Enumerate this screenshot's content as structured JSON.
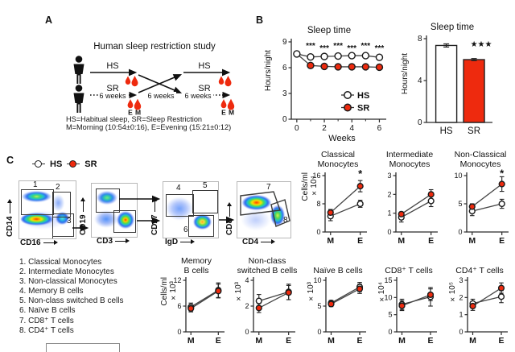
{
  "figure": {
    "panel_a_label": "A",
    "panel_b_label": "B",
    "panel_c_label": "C"
  },
  "colors": {
    "sr_red": "#ee2a0e",
    "hs_white": "#ffffff",
    "axis": "#2b2b2b"
  },
  "icons": {
    "arrow_right": "→",
    "blood_drop": "drop",
    "person": "person-pictogram"
  },
  "panelA": {
    "title": "Human sleep restriction study",
    "hs": "HS",
    "sr": "SR",
    "six_weeks": "6 weeks",
    "e": "E",
    "m": "M",
    "footnote1": "HS=Habitual sleep, SR=Sleep Restriction",
    "footnote2": "M=Morning (10:54±0:16), E=Evening (15:21±0:12)"
  },
  "panelC": {
    "legend": {
      "hs": "HS",
      "sr": "SR"
    },
    "flow": {
      "plots": [
        {
          "x": "CD16",
          "y": "CD14",
          "g1": "1",
          "g2": "2",
          "g3": "3"
        },
        {
          "x": "CD3",
          "y": "CD19"
        },
        {
          "x": "IgD",
          "y": "CD27",
          "g4": "4",
          "g5": "5",
          "g6": "6"
        },
        {
          "x": "CD4",
          "y": "CD8",
          "g7": "7",
          "g8": "8"
        }
      ]
    },
    "cell_types": [
      "1. Classical Monocytes",
      "2. Intermediate Monocytes",
      "3. Non-classical Monocytes",
      "4. Memory B cells",
      "5. Non-class switched B cells",
      "6. Naïve B cells",
      "7. CD8⁺ T cells",
      "8. CD4⁺ T cells"
    ]
  },
  "chart_data": [
    {
      "id": "sleep-time-line",
      "type": "line",
      "title": "Sleep time",
      "ylabel": "Hours/night",
      "xlabel": "Weeks",
      "x": [
        0,
        1,
        2,
        3,
        4,
        5,
        6
      ],
      "xlim": [
        -0.4,
        6.5
      ],
      "xticks": [
        0,
        2,
        4,
        6
      ],
      "xminor": [
        1,
        3,
        5
      ],
      "ylim": [
        0,
        9
      ],
      "yticks": [
        0,
        3,
        6,
        9
      ],
      "series": [
        {
          "name": "HS",
          "fill": "#ffffff",
          "values": [
            7.6,
            7.25,
            7.3,
            7.35,
            7.4,
            7.4,
            7.2
          ]
        },
        {
          "name": "SR",
          "fill": "#ee2a0e",
          "values": [
            7.6,
            6.25,
            6.15,
            6.1,
            6.1,
            6.1,
            6.05
          ],
          "skip_markers": [
            0
          ]
        }
      ],
      "sig": {
        "text": "***",
        "xs": [
          1,
          2,
          3,
          4,
          5,
          6
        ],
        "y": 8.25
      },
      "legend": true,
      "legend_position": "inside-bottom-right"
    },
    {
      "id": "sleep-time-bar",
      "type": "bar",
      "title": "Sleep time",
      "ylabel": "Hours/night",
      "categories": [
        "HS",
        "SR"
      ],
      "values": [
        7.35,
        6.0
      ],
      "errors": [
        0.15,
        0.1
      ],
      "colors": [
        "#ffffff",
        "#ee2a0e"
      ],
      "ylim": [
        0,
        8
      ],
      "yticks": [
        0,
        4,
        8
      ],
      "sig": {
        "text": "★★★",
        "xi": 1,
        "dx": 9,
        "y": 7.25,
        "fs": 10
      }
    },
    {
      "id": "classical-monocytes",
      "type": "line",
      "title": [
        "Classical",
        "Monocytes"
      ],
      "ylabel": [
        "Cells/ml",
        "×10⁴"
      ],
      "categories": [
        "M",
        "E"
      ],
      "ylim": [
        0,
        16
      ],
      "yticks": [
        0,
        8,
        16
      ],
      "series": [
        {
          "name": "HS",
          "fill": "#ffffff",
          "values": [
            4.5,
            8.0
          ],
          "errors": [
            1.3,
            1.0
          ]
        },
        {
          "name": "SR",
          "fill": "#ee2a0e",
          "values": [
            5.5,
            13.0
          ],
          "errors": [
            0.9,
            1.6
          ]
        }
      ],
      "sig": {
        "text": "*",
        "xi": 1,
        "dx": 0,
        "y": 15.6,
        "fs": 13
      }
    },
    {
      "id": "intermediate-monocytes",
      "type": "line",
      "title": [
        "Intermediate",
        "Monocytes"
      ],
      "categories": [
        "M",
        "E"
      ],
      "ylim": [
        0,
        3
      ],
      "yticks": [
        0,
        1,
        2,
        3
      ],
      "series": [
        {
          "name": "HS",
          "fill": "#ffffff",
          "values": [
            0.78,
            1.65
          ],
          "errors": [
            0.25,
            0.3
          ]
        },
        {
          "name": "SR",
          "fill": "#ee2a0e",
          "values": [
            0.95,
            2.0
          ],
          "errors": [
            0.12,
            0.25
          ]
        }
      ]
    },
    {
      "id": "non-classical-monocytes",
      "type": "line",
      "title": [
        "Non-Classical",
        "Monocytes"
      ],
      "categories": [
        "M",
        "E"
      ],
      "ylim": [
        0,
        10
      ],
      "yticks": [
        0,
        5,
        10
      ],
      "series": [
        {
          "name": "HS",
          "fill": "#ffffff",
          "values": [
            3.7,
            5.0
          ],
          "errors": [
            0.8,
            0.8
          ]
        },
        {
          "name": "SR",
          "fill": "#ee2a0e",
          "values": [
            4.5,
            8.5
          ],
          "errors": [
            0.5,
            1.3
          ]
        }
      ],
      "sig": {
        "text": "*",
        "xi": 1,
        "dx": 0,
        "y": 9.8,
        "fs": 13
      }
    },
    {
      "id": "memory-b-cells",
      "type": "line",
      "title": [
        "Memory",
        "B cells"
      ],
      "ylabel": [
        "Cells/ml",
        "×10³"
      ],
      "categories": [
        "M",
        "E"
      ],
      "ylim": [
        0,
        12
      ],
      "yticks": [
        0,
        6,
        12
      ],
      "series": [
        {
          "name": "HS",
          "fill": "#ffffff",
          "values": [
            5.8,
            9.7
          ],
          "errors": [
            0.9,
            1.7
          ]
        },
        {
          "name": "SR",
          "fill": "#ee2a0e",
          "values": [
            5.45,
            9.5
          ],
          "errors": [
            0.8,
            1.6
          ]
        }
      ]
    },
    {
      "id": "non-class-switched-b-cells",
      "type": "line",
      "title": [
        "Non-class",
        "switched B cells"
      ],
      "ylabel": [
        "×10³"
      ],
      "categories": [
        "M",
        "E"
      ],
      "ylim": [
        0,
        4
      ],
      "yticks": [
        0,
        2,
        4
      ],
      "series": [
        {
          "name": "HS",
          "fill": "#ffffff",
          "values": [
            2.4,
            3.1
          ],
          "errors": [
            0.5,
            0.6
          ]
        },
        {
          "name": "SR",
          "fill": "#ee2a0e",
          "values": [
            1.85,
            3.05
          ],
          "errors": [
            0.35,
            0.55
          ]
        }
      ]
    },
    {
      "id": "naive-b-cells",
      "type": "line",
      "title": [
        "Naïve B cells"
      ],
      "ylabel": [
        "×10³"
      ],
      "categories": [
        "M",
        "E"
      ],
      "ylim": [
        0,
        10
      ],
      "yticks": [
        0,
        5,
        10
      ],
      "series": [
        {
          "name": "HS",
          "fill": "#ffffff",
          "values": [
            5.6,
            8.7
          ],
          "errors": [
            0.5,
            0.9
          ]
        },
        {
          "name": "SR",
          "fill": "#ee2a0e",
          "values": [
            5.4,
            8.35
          ],
          "errors": [
            0.5,
            0.9
          ]
        }
      ]
    },
    {
      "id": "cd8-t-cells",
      "type": "line",
      "title": [
        "CD8⁺ T cells"
      ],
      "ylabel": [
        "×10⁴"
      ],
      "categories": [
        "M",
        "E"
      ],
      "ylim": [
        0,
        15
      ],
      "yticks": [
        0,
        5,
        10,
        15
      ],
      "series": [
        {
          "name": "HS",
          "fill": "#ffffff",
          "values": [
            8.0,
            10.2
          ],
          "errors": [
            1.5,
            2.7
          ]
        },
        {
          "name": "SR",
          "fill": "#ee2a0e",
          "values": [
            7.6,
            10.8
          ],
          "errors": [
            1.4,
            1.7
          ]
        }
      ]
    },
    {
      "id": "cd4-t-cells",
      "type": "line",
      "title": [
        "CD4⁺ T cells"
      ],
      "ylabel": [
        "×10⁵"
      ],
      "categories": [
        "M",
        "E"
      ],
      "ylim": [
        0,
        3
      ],
      "yticks": [
        0,
        1,
        2,
        3
      ],
      "series": [
        {
          "name": "HS",
          "fill": "#ffffff",
          "values": [
            1.65,
            2.05
          ],
          "errors": [
            0.25,
            0.35
          ]
        },
        {
          "name": "SR",
          "fill": "#ee2a0e",
          "values": [
            1.5,
            2.55
          ],
          "errors": [
            0.25,
            0.3
          ]
        }
      ]
    }
  ]
}
